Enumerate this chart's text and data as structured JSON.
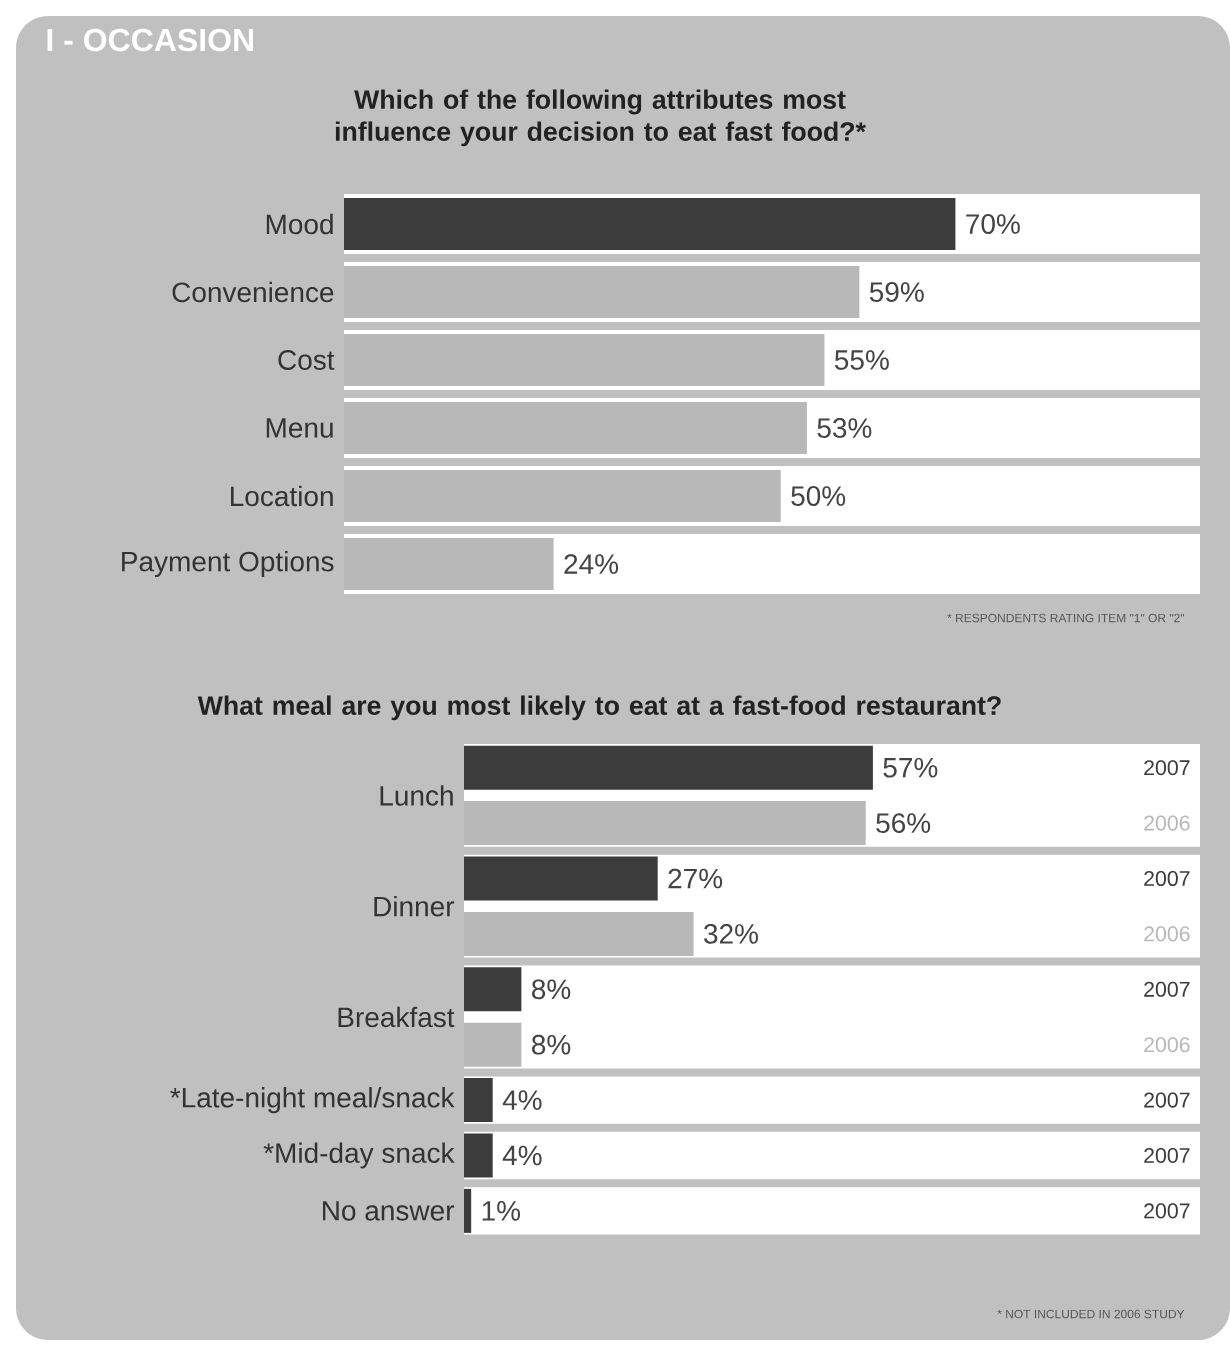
{
  "chart_data": [
    {
      "type": "bar",
      "orientation": "horizontal",
      "title": "Which of the following attributes most influence your decision to eat fast food?*",
      "categories": [
        "Mood",
        "Convenience",
        "Cost",
        "Menu",
        "Location",
        "Payment Options"
      ],
      "values": [
        70,
        59,
        55,
        53,
        50,
        24
      ],
      "colors": [
        "#3c3c3c",
        "#b8b8b8",
        "#b8b8b8",
        "#b8b8b8",
        "#b8b8b8",
        "#b8b8b8"
      ],
      "value_labels": [
        "70%",
        "59%",
        "55%",
        "53%",
        "50%",
        "24%"
      ],
      "annotations": [
        "I - OCCASION",
        "* RESPONDENTS RATING ITEM \"1\" OR \"2\""
      ]
    },
    {
      "type": "bar",
      "orientation": "horizontal",
      "title": "What meal are you most likely to eat at a fast-food restaurant?",
      "categories": [
        "Lunch",
        "Dinner",
        "Breakfast",
        "*Late-night meal/snack",
        "*Mid-day snack",
        "No answer"
      ],
      "series": [
        {
          "name": "2007",
          "color": "#3c3c3c",
          "values": [
            57,
            27,
            8,
            4,
            4,
            1
          ],
          "value_labels": [
            "57%",
            "27%",
            "8%",
            "4%",
            "4%",
            "1%"
          ]
        },
        {
          "name": "2006",
          "color": "#b8b8b8",
          "values": [
            56,
            32,
            8,
            null,
            null,
            null
          ],
          "value_labels": [
            "56%",
            "32%",
            "8%",
            null,
            null,
            null
          ]
        }
      ],
      "annotations": [
        "* NOT INCLUDED IN 2006 STUDY"
      ]
    }
  ]
}
